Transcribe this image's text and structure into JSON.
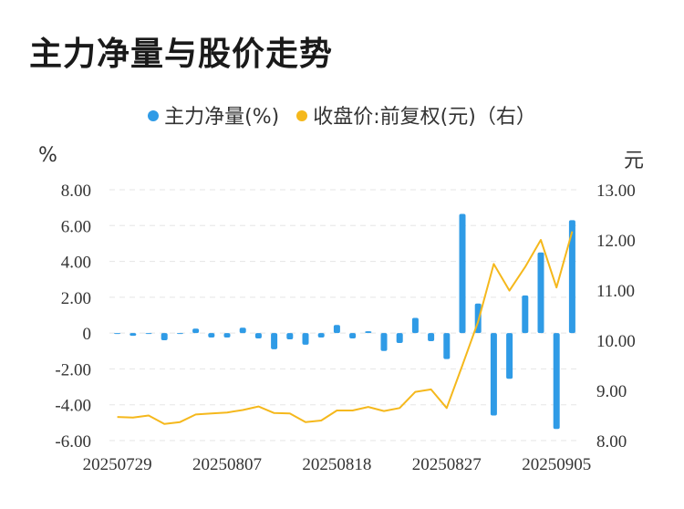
{
  "title": "主力净量与股价走势",
  "legend": {
    "series1": "主力净量(%)",
    "series2": "收盘价:前复权(元)（右）"
  },
  "units": {
    "left": "%",
    "right": "元"
  },
  "colors": {
    "bar": "#2f9be6",
    "line": "#f5b81c",
    "grid": "#e5e5e5"
  },
  "chart_data": {
    "type": "bar",
    "categories": [
      "20250729",
      "20250730",
      "20250731",
      "20250801",
      "20250804",
      "20250805",
      "20250806",
      "20250807",
      "20250808",
      "20250811",
      "20250812",
      "20250813",
      "20250814",
      "20250815",
      "20250818",
      "20250819",
      "20250820",
      "20250821",
      "20250822",
      "20250825",
      "20250826",
      "20250827",
      "20250828",
      "20250829",
      "20250901",
      "20250902",
      "20250903",
      "20250904",
      "20250905",
      "20250908"
    ],
    "x_tick_labels": [
      "20250729",
      "20250807",
      "20250818",
      "20250827",
      "20250905"
    ],
    "x_tick_indices": [
      0,
      7,
      14,
      21,
      28
    ],
    "series": [
      {
        "name": "主力净量(%)",
        "type": "bar",
        "axis": "left",
        "values": [
          -0.05,
          -0.15,
          -0.05,
          -0.4,
          -0.03,
          0.25,
          -0.25,
          -0.25,
          0.3,
          -0.3,
          -0.9,
          -0.35,
          -0.65,
          -0.25,
          0.45,
          -0.3,
          0.1,
          -1.0,
          -0.55,
          0.85,
          -0.45,
          -1.45,
          6.65,
          1.65,
          -4.6,
          -2.55,
          2.1,
          4.5,
          -5.35,
          6.3
        ]
      },
      {
        "name": "收盘价:前复权(元)（右）",
        "type": "line",
        "axis": "right",
        "values": [
          8.47,
          8.46,
          8.5,
          8.33,
          8.37,
          8.52,
          8.54,
          8.56,
          8.61,
          8.68,
          8.55,
          8.54,
          8.37,
          8.4,
          8.6,
          8.6,
          8.67,
          8.59,
          8.65,
          8.97,
          9.02,
          8.65,
          9.5,
          10.37,
          11.52,
          10.99,
          11.46,
          12.0,
          11.05,
          12.17
        ]
      }
    ],
    "yaxis_left": {
      "min": -6,
      "max": 8,
      "ticks": [
        "8.00",
        "6.00",
        "4.00",
        "2.00",
        "0",
        "-2.00",
        "-4.00",
        "-6.00"
      ],
      "tick_values": [
        8,
        6,
        4,
        2,
        0,
        -2,
        -4,
        -6
      ]
    },
    "yaxis_right": {
      "min": 8,
      "max": 13,
      "ticks": [
        "13.00",
        "12.00",
        "11.00",
        "10.00",
        "9.00",
        "8.00"
      ],
      "tick_values": [
        13,
        12,
        11,
        10,
        9,
        8
      ]
    },
    "grid": true,
    "legend_position": "top-center"
  }
}
